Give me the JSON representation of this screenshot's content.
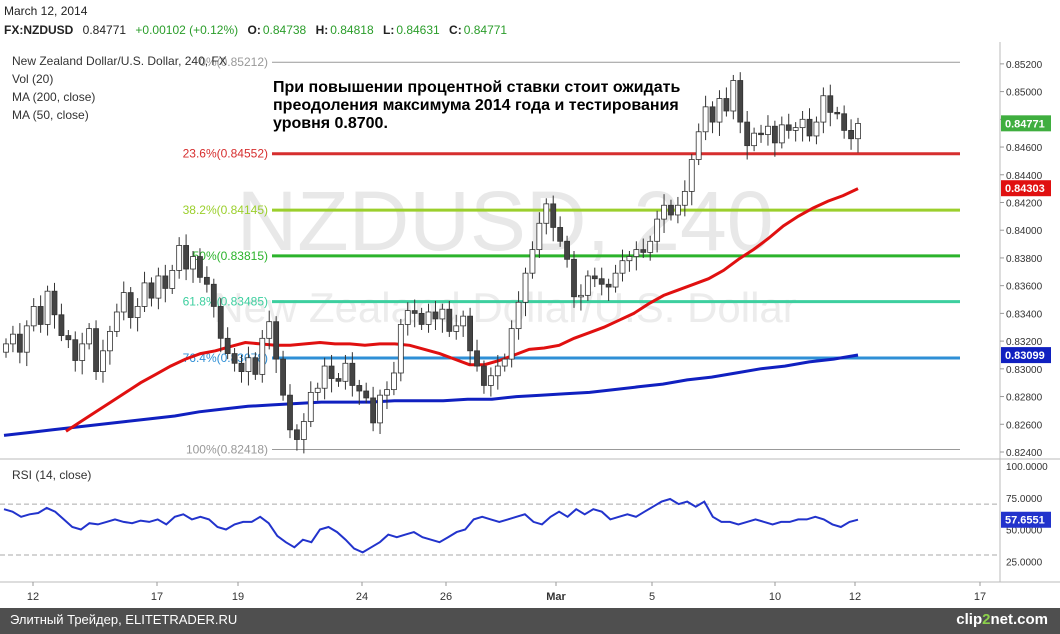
{
  "header": {
    "date": "March 12, 2014",
    "symbol": "FX:NZDUSD",
    "last": "0.84771",
    "change": "+0.00102 (+0.12%)",
    "open_label": "O:",
    "open": "0.84738",
    "high_label": "H:",
    "high": "0.84818",
    "low_label": "L:",
    "low": "0.84631",
    "close_label": "C:",
    "close": "0.84771"
  },
  "legend": {
    "title": "New Zealand Dollar/U.S. Dollar, 240, FX",
    "vol": "Vol (20)",
    "ma200": "MA (200, close)",
    "ma50": "MA (50, close)"
  },
  "annotation": "При повышении процентной ставки стоит ожидать преодоления максимума 2014 года и тестирования уровня 0.8700.",
  "watermark": {
    "big": "NZDUSD, 240",
    "small": "New Zealand Dollar/U.S. Dollar"
  },
  "footer": {
    "left": "Элитный Трейдер, ELITETRADER.RU",
    "brand_a": "clip",
    "brand_b": "2",
    "brand_c": "net.com"
  },
  "colors": {
    "up": "#2d7d2d",
    "down": "#c0392b",
    "ma50": "#e01010",
    "ma200": "#1020c0",
    "rsi": "#2233cc"
  },
  "chart_data": [
    {
      "type": "line",
      "title": "New Zealand Dollar/U.S. Dollar, 240, FX",
      "ylim": [
        0.824,
        0.853
      ],
      "y_ticks": [
        "0.85200",
        "0.85000",
        "0.84800",
        "0.84600",
        "0.84400",
        "0.84200",
        "0.84000",
        "0.83800",
        "0.83600",
        "0.83400",
        "0.83200",
        "0.83000",
        "0.82800",
        "0.82600",
        "0.82400"
      ],
      "x_ticks": [
        "12",
        "17",
        "19",
        "24",
        "26",
        "Mar",
        "5",
        "10",
        "12",
        "17"
      ],
      "fib_levels": [
        {
          "label": "0%(0.85212)",
          "value": 0.85212,
          "color": "#999999"
        },
        {
          "label": "23.6%(0.84552)",
          "value": 0.84552,
          "color": "#d62e2e"
        },
        {
          "label": "38.2%(0.84145)",
          "value": 0.84145,
          "color": "#9bcf2c"
        },
        {
          "label": "50%(0.83815)",
          "value": 0.83815,
          "color": "#2bb32b"
        },
        {
          "label": "61.8%(0.83485)",
          "value": 0.83485,
          "color": "#3dcf9f"
        },
        {
          "label": "76.4%(0.83078)",
          "value": 0.83078,
          "color": "#2e8fd6"
        },
        {
          "label": "100%(0.82418)",
          "value": 0.82418,
          "color": "#999999"
        }
      ],
      "price_tags": [
        {
          "label": "0.84771",
          "value": 0.84771,
          "color": "#3fae3f"
        },
        {
          "label": "0.84303",
          "value": 0.84303,
          "color": "#e01010"
        },
        {
          "label": "0.83099",
          "value": 0.83099,
          "color": "#1020c0"
        }
      ],
      "closes": [
        0.8318,
        0.8325,
        0.8312,
        0.8331,
        0.8345,
        0.8332,
        0.8356,
        0.8339,
        0.8324,
        0.8321,
        0.8306,
        0.8318,
        0.8329,
        0.8298,
        0.8313,
        0.8327,
        0.8341,
        0.8355,
        0.8337,
        0.8345,
        0.8362,
        0.8351,
        0.8367,
        0.8358,
        0.8371,
        0.8389,
        0.8372,
        0.8381,
        0.8366,
        0.8361,
        0.8345,
        0.8322,
        0.8311,
        0.8304,
        0.8298,
        0.8308,
        0.8296,
        0.8322,
        0.8334,
        0.8307,
        0.8281,
        0.8256,
        0.8249,
        0.8262,
        0.8283,
        0.8286,
        0.8302,
        0.8293,
        0.8291,
        0.8304,
        0.8288,
        0.8284,
        0.8279,
        0.8261,
        0.8281,
        0.8285,
        0.8297,
        0.8332,
        0.8342,
        0.834,
        0.8332,
        0.8341,
        0.8336,
        0.8343,
        0.8327,
        0.8331,
        0.8338,
        0.8313,
        0.8302,
        0.8288,
        0.8295,
        0.8302,
        0.8307,
        0.8329,
        0.8348,
        0.8369,
        0.8386,
        0.8405,
        0.8419,
        0.8402,
        0.8392,
        0.8379,
        0.8352,
        0.8353,
        0.8367,
        0.8365,
        0.8361,
        0.8359,
        0.8369,
        0.8378,
        0.8381,
        0.8386,
        0.8384,
        0.8392,
        0.8408,
        0.8418,
        0.8411,
        0.8418,
        0.8428,
        0.8451,
        0.8471,
        0.8489,
        0.8478,
        0.8495,
        0.8486,
        0.8508,
        0.8478,
        0.8461,
        0.847,
        0.8469,
        0.8475,
        0.8463,
        0.8476,
        0.8472,
        0.8474,
        0.848,
        0.8468,
        0.8478,
        0.8497,
        0.8485,
        0.8484,
        0.8472,
        0.8466,
        0.8477
      ],
      "ma50": [
        0.8255,
        0.8262,
        0.8269,
        0.8276,
        0.8283,
        0.829,
        0.8296,
        0.8302,
        0.8307,
        0.8311,
        0.8313,
        0.8316,
        0.8319,
        0.8318,
        0.8317,
        0.8317,
        0.8318,
        0.8319,
        0.8318,
        0.8318,
        0.8317,
        0.8318,
        0.8318,
        0.8317,
        0.8314,
        0.8311,
        0.8307,
        0.8303,
        0.8303,
        0.8306,
        0.831,
        0.8314,
        0.8315,
        0.8317,
        0.8322,
        0.8326,
        0.833,
        0.8335,
        0.834,
        0.8347,
        0.8353,
        0.8357,
        0.8361,
        0.8365,
        0.8371,
        0.8379,
        0.8386,
        0.8394,
        0.8403,
        0.841,
        0.8416,
        0.8421,
        0.8425,
        0.843
      ],
      "ma200": [
        0.8252,
        0.8254,
        0.8256,
        0.8258,
        0.826,
        0.8262,
        0.8264,
        0.8266,
        0.8269,
        0.8271,
        0.8273,
        0.8274,
        0.8275,
        0.8276,
        0.8276,
        0.8276,
        0.8277,
        0.8277,
        0.8277,
        0.8278,
        0.8278,
        0.828,
        0.8281,
        0.8282,
        0.8283,
        0.8285,
        0.8287,
        0.8289,
        0.8292,
        0.8294,
        0.8297,
        0.83,
        0.8302,
        0.8305,
        0.8307,
        0.831
      ]
    },
    {
      "type": "line",
      "title": "RSI (14, close)",
      "ylim": [
        15,
        100
      ],
      "y_ticks": [
        "100.0000",
        "75.0000",
        "50.0000",
        "25.0000"
      ],
      "levels": [
        70,
        30
      ],
      "value_tag": "57.6551",
      "values": [
        66,
        64,
        60,
        62,
        63,
        67,
        64,
        58,
        52,
        50,
        55,
        54,
        56,
        58,
        56,
        55,
        57,
        56,
        58,
        54,
        60,
        62,
        58,
        60,
        58,
        52,
        50,
        54,
        56,
        56,
        60,
        55,
        45,
        40,
        36,
        42,
        40,
        50,
        52,
        48,
        42,
        35,
        32,
        36,
        40,
        46,
        44,
        46,
        48,
        44,
        42,
        40,
        44,
        48,
        50,
        58,
        60,
        58,
        56,
        58,
        60,
        62,
        56,
        54,
        60,
        64,
        60,
        66,
        62,
        66,
        64,
        58,
        60,
        62,
        60,
        64,
        68,
        72,
        74,
        70,
        72,
        68,
        72,
        60,
        56,
        56,
        54,
        56,
        58,
        56,
        54,
        56,
        56,
        58,
        58,
        60,
        58,
        54,
        52,
        56,
        57.7
      ]
    }
  ]
}
